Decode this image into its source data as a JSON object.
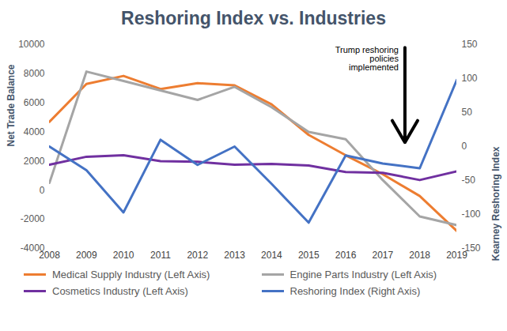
{
  "chart_data": {
    "type": "line",
    "title": "Reshoring Index vs. Industries",
    "y_label": "Net Trade Balance",
    "y2_label": "Kearney Reshoring Index",
    "annotation": "Trump reshoring policies implemented",
    "x": [
      2008,
      2009,
      2010,
      2011,
      2012,
      2013,
      2014,
      2015,
      2016,
      2017,
      2018,
      2019
    ],
    "xlim": [
      2008,
      2019
    ],
    "xticks": [
      2008,
      2009,
      2010,
      2011,
      2012,
      2013,
      2014,
      2015,
      2016,
      2017,
      2018,
      2019
    ],
    "ylim": [
      -4000,
      10000
    ],
    "yticks": [
      -4000,
      -2000,
      0,
      2000,
      4000,
      6000,
      8000,
      10000
    ],
    "y2lim": [
      -150,
      150
    ],
    "y2ticks": [
      -150,
      -100,
      -50,
      0,
      50,
      100,
      150
    ],
    "grid": false,
    "legend": "bottom",
    "series": [
      {
        "name": "Medical Supply Industry (Left Axis)",
        "color": "#ed7d31",
        "values": [
          4700,
          7300,
          7850,
          6950,
          7350,
          7200,
          5900,
          3800,
          2400,
          1100,
          -400,
          -2800
        ]
      },
      {
        "name": "Engine Parts Industry (Left Axis)",
        "color": "#a5a5a5",
        "values": [
          500,
          8150,
          7500,
          6850,
          6200,
          7100,
          5700,
          4000,
          3500,
          700,
          -1800,
          -2400
        ]
      },
      {
        "name": "Cosmetics Industry (Left Axis)",
        "color": "#7030a0",
        "values": [
          1750,
          2300,
          2400,
          2000,
          1950,
          1750,
          1800,
          1700,
          1250,
          1200,
          700,
          1300
        ]
      },
      {
        "name": "Reshoring Index (Right Axis)",
        "color": "#4472c4",
        "axis": "y2",
        "values": [
          0,
          -35,
          -97,
          10,
          -27,
          0,
          -55,
          -112,
          -13,
          -25,
          -32,
          98
        ]
      }
    ]
  }
}
